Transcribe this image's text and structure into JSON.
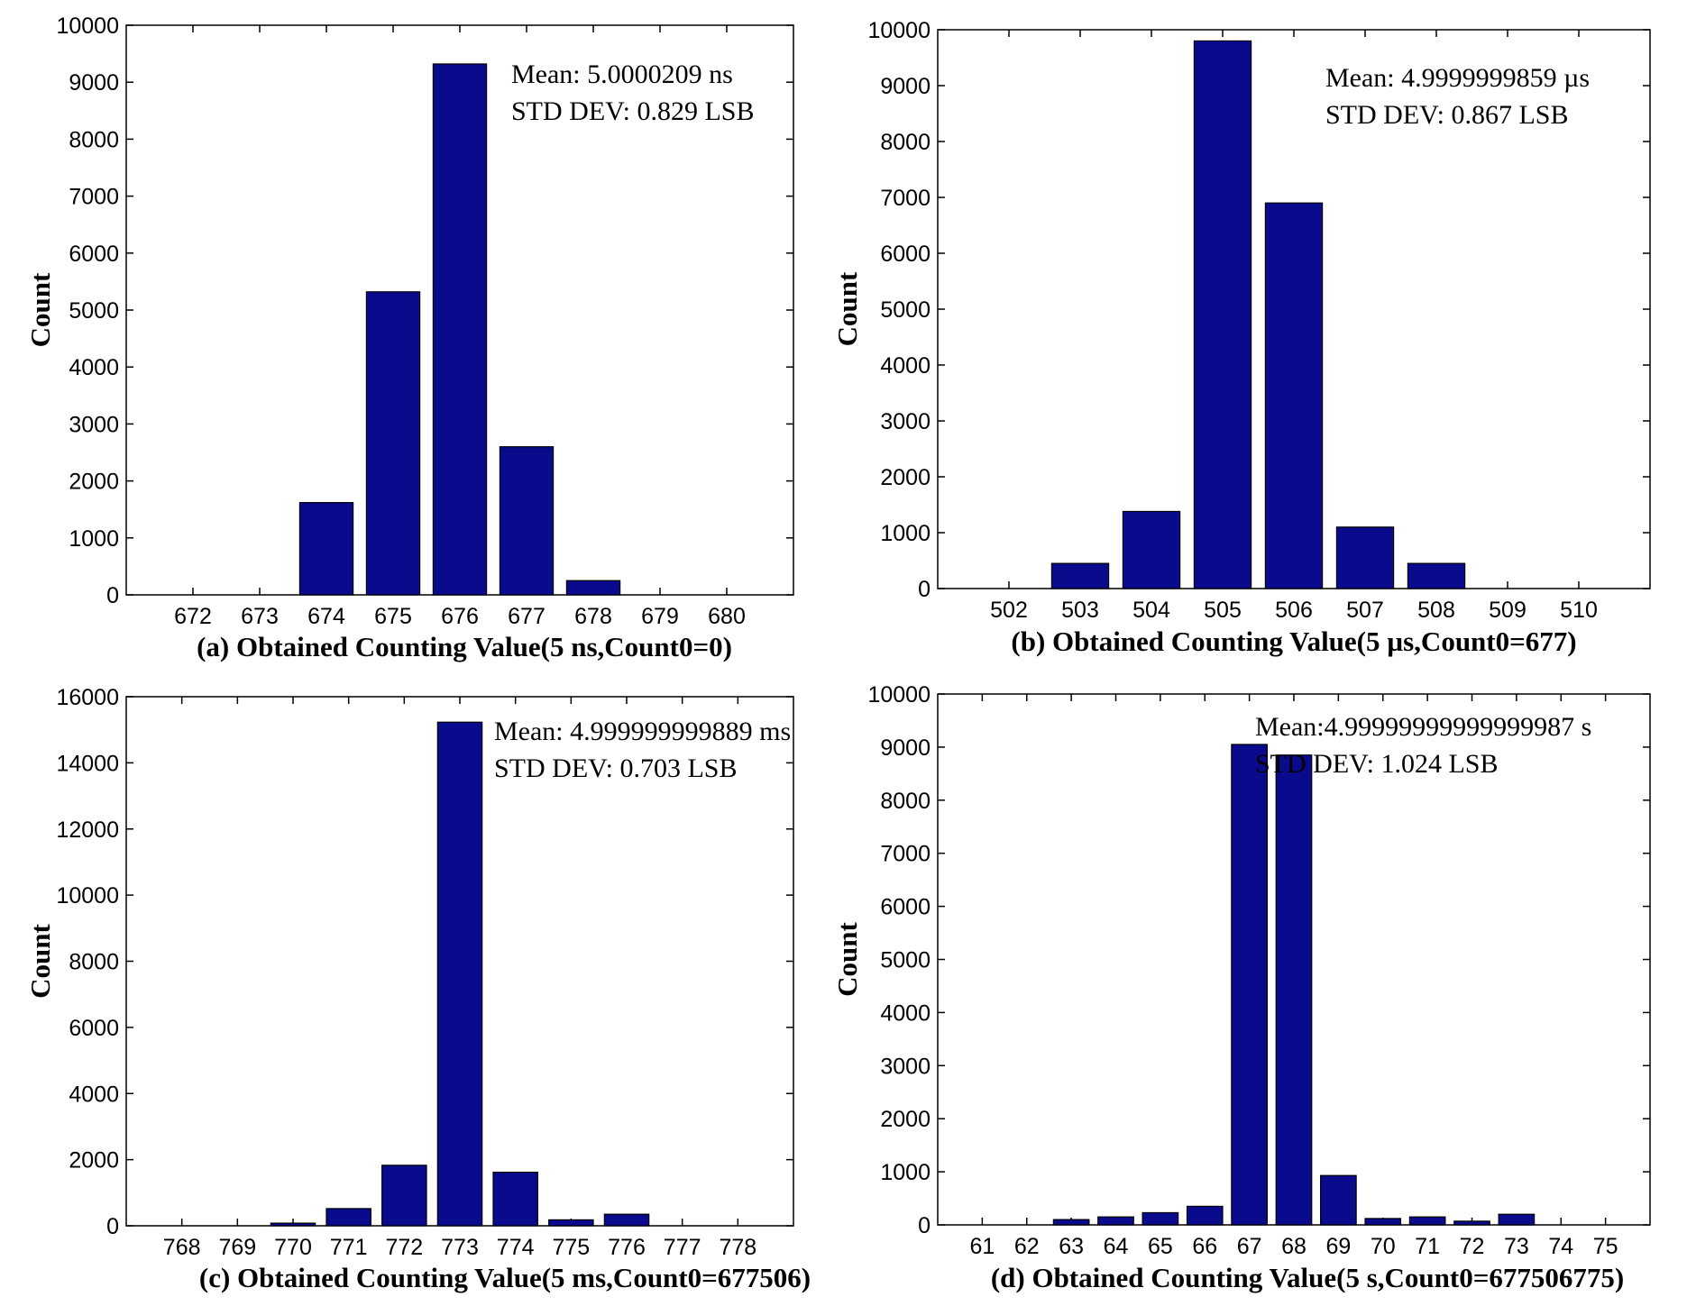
{
  "colors": {
    "bar_fill": "#0a0a8c",
    "bar_edge": "#000000",
    "axis": "#000000",
    "background": "#ffffff"
  },
  "chart_data": [
    {
      "id": "a",
      "type": "bar",
      "title": "(a) Obtained Counting Value(5 ns,Count0=0)",
      "xlabel": "(a) Obtained Counting Value(5 ns,Count0=0)",
      "ylabel": "Count",
      "categories": [
        "672",
        "673",
        "674",
        "675",
        "676",
        "677",
        "678",
        "679",
        "680"
      ],
      "values": [
        0,
        0,
        1620,
        5320,
        9320,
        2600,
        250,
        0,
        0
      ],
      "ylim": [
        0,
        10000
      ],
      "yticks": [
        0,
        1000,
        2000,
        3000,
        4000,
        5000,
        6000,
        7000,
        8000,
        9000,
        10000
      ],
      "annotations": [
        "Mean: 5.0000209 ns",
        "STD DEV: 0.829 LSB"
      ],
      "annotation_position": "top-right",
      "grid": false
    },
    {
      "id": "b",
      "type": "bar",
      "title": "(b) Obtained Counting Value(5 µs,Count0=677)",
      "xlabel": "(b) Obtained Counting Value(5 µs,Count0=677)",
      "ylabel": "Count",
      "categories": [
        "502",
        "503",
        "504",
        "505",
        "506",
        "507",
        "508",
        "509",
        "510"
      ],
      "values": [
        0,
        450,
        1380,
        9800,
        6900,
        1100,
        450,
        0,
        0
      ],
      "ylim": [
        0,
        10000
      ],
      "yticks": [
        0,
        1000,
        2000,
        3000,
        4000,
        5000,
        6000,
        7000,
        8000,
        9000,
        10000
      ],
      "annotations": [
        "Mean: 4.9999999859 µs",
        "STD DEV: 0.867 LSB"
      ],
      "annotation_position": "top-right",
      "grid": false
    },
    {
      "id": "c",
      "type": "bar",
      "title": "(c) Obtained Counting Value(5 ms,Count0=677506)",
      "xlabel": "(c) Obtained Counting Value(5 ms,Count0=677506)",
      "ylabel": "Count",
      "categories": [
        "768",
        "769",
        "770",
        "771",
        "772",
        "773",
        "774",
        "775",
        "776",
        "777",
        "778"
      ],
      "values": [
        0,
        0,
        80,
        520,
        1830,
        15230,
        1620,
        180,
        350,
        0,
        0
      ],
      "ylim": [
        0,
        16000
      ],
      "yticks": [
        0,
        2000,
        4000,
        6000,
        8000,
        10000,
        12000,
        14000,
        16000
      ],
      "annotations": [
        "Mean: 4.999999999889 ms",
        "STD DEV: 0.703 LSB"
      ],
      "annotation_position": "top-right",
      "grid": false
    },
    {
      "id": "d",
      "type": "bar",
      "title": "(d) Obtained Counting Value(5 s,Count0=677506775)",
      "xlabel": "(d) Obtained Counting Value(5 s,Count0=677506775)",
      "ylabel": "Count",
      "categories": [
        "61",
        "62",
        "63",
        "64",
        "65",
        "66",
        "67",
        "68",
        "69",
        "70",
        "71",
        "72",
        "73",
        "74",
        "75"
      ],
      "values": [
        0,
        0,
        100,
        150,
        230,
        350,
        9050,
        8850,
        930,
        120,
        150,
        70,
        200,
        0,
        0
      ],
      "ylim": [
        0,
        10000
      ],
      "yticks": [
        0,
        1000,
        2000,
        3000,
        4000,
        5000,
        6000,
        7000,
        8000,
        9000,
        10000
      ],
      "annotations": [
        "Mean:4.99999999999999987 s",
        "STD DEV: 1.024 LSB"
      ],
      "annotation_position": "top-right",
      "grid": false
    }
  ]
}
